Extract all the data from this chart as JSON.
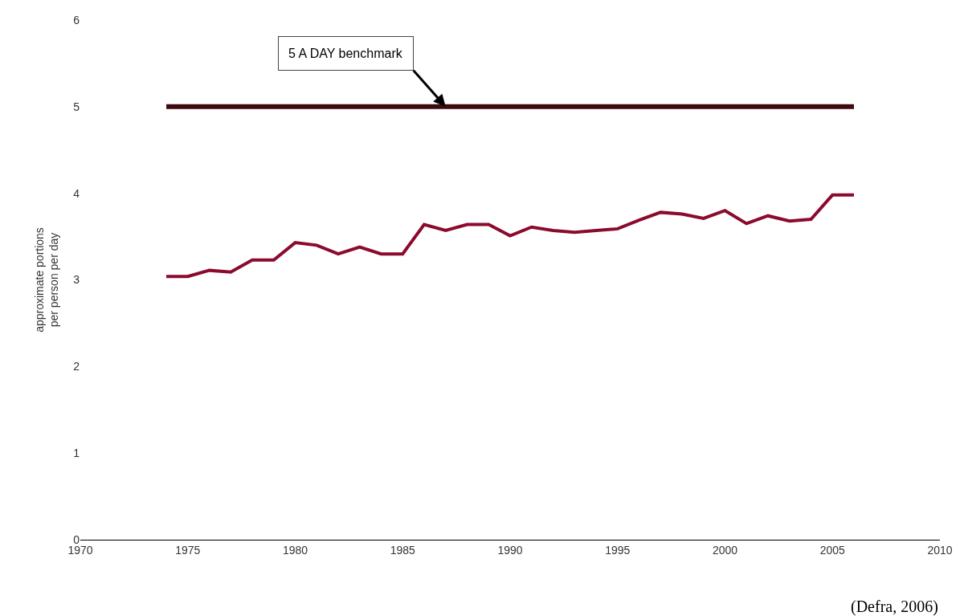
{
  "chart_data": {
    "type": "line",
    "ylabel": "approximate portions\nper person per day",
    "xlim": [
      1970,
      2010
    ],
    "xticks": [
      1970,
      1975,
      1980,
      1985,
      1990,
      1995,
      2000,
      2005,
      2010
    ],
    "ylim": [
      0,
      6
    ],
    "yticks": [
      0,
      1,
      2,
      3,
      4,
      5,
      6
    ],
    "marker": "none",
    "line_style": "solid",
    "series": [
      {
        "color": "#3d0a0f",
        "x": [
          1974,
          2006
        ],
        "values": [
          5,
          5
        ]
      },
      {
        "color": "#8b0a2e",
        "x": [
          1974,
          1975,
          1976,
          1977,
          1978,
          1979,
          1980,
          1981,
          1982,
          1983,
          1984,
          1985,
          1986,
          1987,
          1988,
          1989,
          1990,
          1991,
          1992,
          1993,
          1994,
          1995,
          1996,
          1997,
          1998,
          1999,
          2000,
          2001,
          2002,
          2003,
          2004,
          2005,
          2006
        ],
        "values": [
          3.04,
          3.04,
          3.11,
          3.09,
          3.23,
          3.23,
          3.43,
          3.4,
          3.3,
          3.38,
          3.3,
          3.3,
          3.64,
          3.57,
          3.64,
          3.64,
          3.51,
          3.61,
          3.57,
          3.55,
          3.57,
          3.59,
          3.69,
          3.78,
          3.76,
          3.71,
          3.8,
          3.65,
          3.74,
          3.68,
          3.7,
          3.98,
          3.98
        ]
      }
    ],
    "annotations": [
      {
        "text": "5 A DAY benchmark",
        "x": 1987,
        "y": 5
      },
      "(Defra, 2006)"
    ]
  }
}
